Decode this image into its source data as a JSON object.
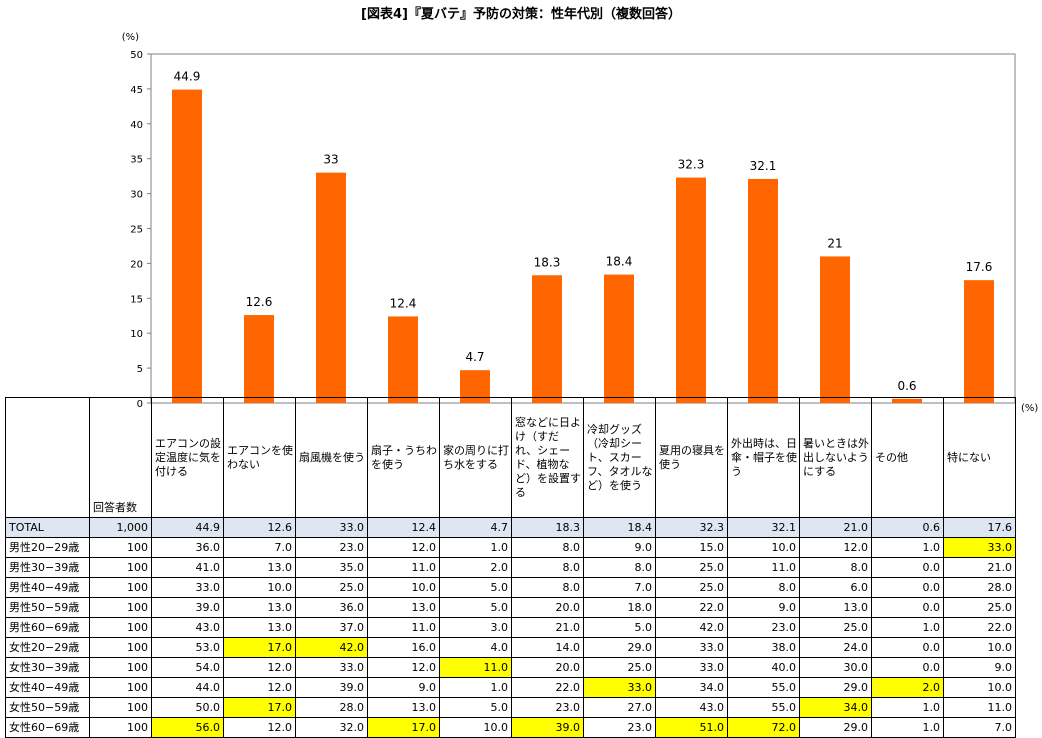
{
  "title": "[図表4]『夏バテ』予防の対策：性年代別（複数回答）",
  "chart_data": {
    "type": "bar",
    "y_unit": "(%)",
    "x_unit": "(%)",
    "ylim": [
      0,
      50
    ],
    "yticks": [
      0,
      5,
      10,
      15,
      20,
      25,
      30,
      35,
      40,
      45,
      50
    ],
    "categories": [
      "エアコンの設定温度に気を付ける",
      "エアコンを使わない",
      "扇風機を使う",
      "扇子・うちわを使う",
      "家の周りに打ち水をする",
      "窓などに日よけ（すだれ、シェード、植物など）を設置する",
      "冷却グッズ（冷却シート、スカーフ、タオルなど）を使う",
      "夏用の寝具を使う",
      "外出時は、日傘・帽子を使う",
      "暑いときは外出しないようにする",
      "その他",
      "特にない"
    ],
    "values": [
      44.9,
      12.6,
      33,
      12.4,
      4.7,
      18.3,
      18.4,
      32.3,
      32.1,
      21,
      0.6,
      17.6
    ],
    "value_labels": [
      "44.9",
      "12.6",
      "33",
      "12.4",
      "4.7",
      "18.3",
      "18.4",
      "32.3",
      "32.1",
      "21",
      "0.6",
      "17.6"
    ],
    "bar_color": "#ff6600",
    "grid": false
  },
  "table": {
    "count_header": "回答者数",
    "highlight_color": "#ffff00",
    "total_color": "#dde6f1",
    "rows": [
      {
        "label": "TOTAL",
        "n": "1,000",
        "values": [
          "44.9",
          "12.6",
          "33.0",
          "12.4",
          "4.7",
          "18.3",
          "18.4",
          "32.3",
          "32.1",
          "21.0",
          "0.6",
          "17.6"
        ],
        "highlight": []
      },
      {
        "label": "男性20−29歳",
        "n": "100",
        "values": [
          "36.0",
          "7.0",
          "23.0",
          "12.0",
          "1.0",
          "8.0",
          "9.0",
          "15.0",
          "10.0",
          "12.0",
          "1.0",
          "33.0"
        ],
        "highlight": [
          11
        ]
      },
      {
        "label": "男性30−39歳",
        "n": "100",
        "values": [
          "41.0",
          "13.0",
          "35.0",
          "11.0",
          "2.0",
          "8.0",
          "8.0",
          "25.0",
          "11.0",
          "8.0",
          "0.0",
          "21.0"
        ],
        "highlight": []
      },
      {
        "label": "男性40−49歳",
        "n": "100",
        "values": [
          "33.0",
          "10.0",
          "25.0",
          "10.0",
          "5.0",
          "8.0",
          "7.0",
          "25.0",
          "8.0",
          "6.0",
          "0.0",
          "28.0"
        ],
        "highlight": []
      },
      {
        "label": "男性50−59歳",
        "n": "100",
        "values": [
          "39.0",
          "13.0",
          "36.0",
          "13.0",
          "5.0",
          "20.0",
          "18.0",
          "22.0",
          "9.0",
          "13.0",
          "0.0",
          "25.0"
        ],
        "highlight": []
      },
      {
        "label": "男性60−69歳",
        "n": "100",
        "values": [
          "43.0",
          "13.0",
          "37.0",
          "11.0",
          "3.0",
          "21.0",
          "5.0",
          "42.0",
          "23.0",
          "25.0",
          "1.0",
          "22.0"
        ],
        "highlight": []
      },
      {
        "label": "女性20−29歳",
        "n": "100",
        "values": [
          "53.0",
          "17.0",
          "42.0",
          "16.0",
          "4.0",
          "14.0",
          "29.0",
          "33.0",
          "38.0",
          "24.0",
          "0.0",
          "10.0"
        ],
        "highlight": [
          1,
          2
        ]
      },
      {
        "label": "女性30−39歳",
        "n": "100",
        "values": [
          "54.0",
          "12.0",
          "33.0",
          "12.0",
          "11.0",
          "20.0",
          "25.0",
          "33.0",
          "40.0",
          "30.0",
          "0.0",
          "9.0"
        ],
        "highlight": [
          4
        ]
      },
      {
        "label": "女性40−49歳",
        "n": "100",
        "values": [
          "44.0",
          "12.0",
          "39.0",
          "9.0",
          "1.0",
          "22.0",
          "33.0",
          "34.0",
          "55.0",
          "29.0",
          "2.0",
          "10.0"
        ],
        "highlight": [
          6,
          10
        ]
      },
      {
        "label": "女性50−59歳",
        "n": "100",
        "values": [
          "50.0",
          "17.0",
          "28.0",
          "13.0",
          "5.0",
          "23.0",
          "27.0",
          "43.0",
          "55.0",
          "34.0",
          "1.0",
          "11.0"
        ],
        "highlight": [
          1,
          9
        ]
      },
      {
        "label": "女性60−69歳",
        "n": "100",
        "values": [
          "56.0",
          "12.0",
          "32.0",
          "17.0",
          "10.0",
          "39.0",
          "23.0",
          "51.0",
          "72.0",
          "29.0",
          "1.0",
          "7.0"
        ],
        "highlight": [
          0,
          3,
          5,
          7,
          8
        ]
      }
    ]
  }
}
